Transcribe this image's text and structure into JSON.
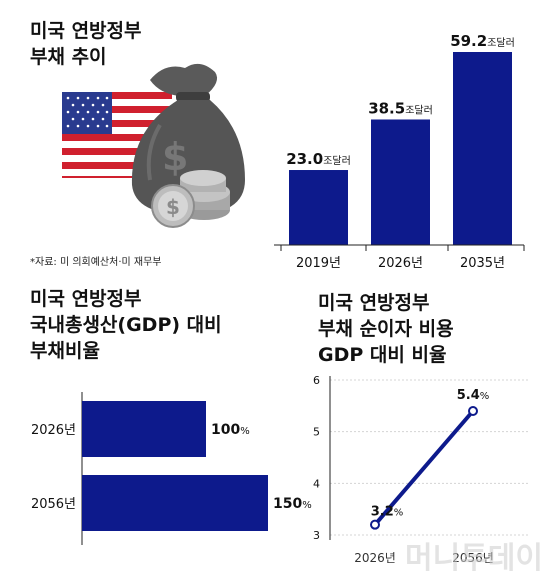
{
  "chart_data": [
    {
      "type": "bar",
      "title_lines": [
        "미국 연방정부",
        "부채 추이"
      ],
      "categories": [
        "2019년",
        "2026년",
        "2035년"
      ],
      "values": [
        23.0,
        38.5,
        59.2
      ],
      "value_labels": [
        "23.0",
        "38.5",
        "59.2"
      ],
      "unit": "조달러",
      "source": "*자료: 미 의회예산처·미 재무부",
      "color": "#0d1a8c"
    },
    {
      "type": "bar",
      "orientation": "horizontal",
      "title_lines": [
        "미국 연방정부",
        "국내총생산(GDP) 대비",
        "부채비율"
      ],
      "categories": [
        "2026년",
        "2056년"
      ],
      "values": [
        100,
        150
      ],
      "value_labels": [
        "100",
        "150"
      ],
      "unit": "%",
      "color": "#0d1a8c"
    },
    {
      "type": "line",
      "title_lines": [
        "미국 연방정부",
        "부채 순이자 비용",
        "GDP 대비 비율"
      ],
      "x": [
        "2026년",
        "2056년"
      ],
      "values": [
        3.2,
        5.4
      ],
      "value_labels": [
        "3.2",
        "5.4"
      ],
      "unit": "%",
      "ylim": [
        3,
        6
      ],
      "yticks": [
        "3",
        "4",
        "5",
        "6"
      ],
      "grid": true,
      "color": "#0d1a8c"
    }
  ],
  "watermark": "머니투데이"
}
